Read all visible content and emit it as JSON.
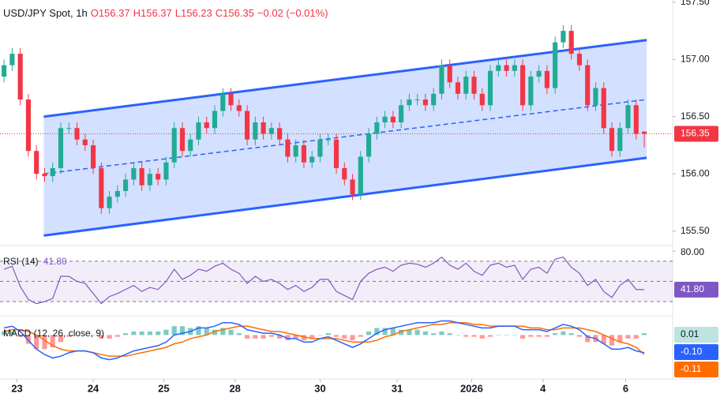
{
  "chart_data": {
    "type": "candlestick",
    "title": "USD/JPY Spot, 1h",
    "ohlc_labels": [
      "O156.37",
      "H156.37",
      "L156.23",
      "C156.35",
      "−0.02 (−0.01%)"
    ],
    "open": [
      156.85,
      156.95,
      157.05,
      156.65,
      156.2,
      156.0,
      155.98,
      156.05,
      156.4,
      156.4,
      156.3,
      156.25,
      156.05,
      155.7,
      155.8,
      155.85,
      155.95,
      156.05,
      155.9,
      156.0,
      155.95,
      156.1,
      156.4,
      156.2,
      156.3,
      156.45,
      156.4,
      156.55,
      156.7,
      156.6,
      156.55,
      156.3,
      156.45,
      156.35,
      156.4,
      156.3,
      156.15,
      156.25,
      156.1,
      156.15,
      156.3,
      156.3,
      156.05,
      155.95,
      155.82,
      156.15,
      156.35,
      156.45,
      156.5,
      156.45,
      156.6,
      156.65,
      156.65,
      156.6,
      156.7,
      156.95,
      156.8,
      156.7,
      156.85,
      156.7,
      156.6,
      156.9,
      156.95,
      156.9,
      156.95,
      156.6,
      156.85,
      156.9,
      156.75,
      157.15,
      157.25,
      157.05,
      156.95,
      156.6,
      156.75,
      156.4,
      156.2,
      156.4,
      156.6,
      156.37
    ],
    "high": [
      157.0,
      157.1,
      157.1,
      156.7,
      156.25,
      156.05,
      156.1,
      156.45,
      156.45,
      156.45,
      156.35,
      156.3,
      156.1,
      155.85,
      155.9,
      156.0,
      156.1,
      156.1,
      156.05,
      156.05,
      156.15,
      156.45,
      156.45,
      156.35,
      156.5,
      156.5,
      156.6,
      156.75,
      156.75,
      156.65,
      156.6,
      156.5,
      156.5,
      156.45,
      156.45,
      156.35,
      156.3,
      156.3,
      156.2,
      156.35,
      156.35,
      156.35,
      156.1,
      156.0,
      156.2,
      156.4,
      156.5,
      156.55,
      156.55,
      156.65,
      156.7,
      156.7,
      156.7,
      156.75,
      157.0,
      157.0,
      156.85,
      156.9,
      156.9,
      156.75,
      156.95,
      157.0,
      157.0,
      157.0,
      157.0,
      156.9,
      156.95,
      156.95,
      157.2,
      157.3,
      157.3,
      157.1,
      157.0,
      156.8,
      156.8,
      156.45,
      156.45,
      156.65,
      156.65,
      156.37
    ],
    "low": [
      156.8,
      156.9,
      156.6,
      156.15,
      155.95,
      155.93,
      155.93,
      156.0,
      156.35,
      156.25,
      156.2,
      156.0,
      155.65,
      155.65,
      155.75,
      155.8,
      155.9,
      155.85,
      155.85,
      155.9,
      155.9,
      156.05,
      156.15,
      156.15,
      156.25,
      156.35,
      156.35,
      156.5,
      156.55,
      156.5,
      156.25,
      156.25,
      156.3,
      156.3,
      156.25,
      156.1,
      156.1,
      156.05,
      156.05,
      156.1,
      156.25,
      156.0,
      155.9,
      155.77,
      155.77,
      156.1,
      156.3,
      156.4,
      156.4,
      156.4,
      156.55,
      156.6,
      156.55,
      156.55,
      156.65,
      156.75,
      156.65,
      156.65,
      156.65,
      156.55,
      156.55,
      156.85,
      156.85,
      156.85,
      156.55,
      156.55,
      156.8,
      156.7,
      156.7,
      157.1,
      157.0,
      156.9,
      156.55,
      156.55,
      156.35,
      156.15,
      156.15,
      156.35,
      156.3,
      156.23
    ],
    "close": [
      156.95,
      157.05,
      156.65,
      156.2,
      156.0,
      155.98,
      156.05,
      156.4,
      156.4,
      156.3,
      156.25,
      156.05,
      155.7,
      155.8,
      155.85,
      155.95,
      156.05,
      155.9,
      156.0,
      155.95,
      156.1,
      156.4,
      156.2,
      156.3,
      156.45,
      156.4,
      156.55,
      156.7,
      156.6,
      156.55,
      156.3,
      156.45,
      156.35,
      156.4,
      156.3,
      156.15,
      156.25,
      156.1,
      156.15,
      156.3,
      156.3,
      156.05,
      155.95,
      155.82,
      156.15,
      156.35,
      156.45,
      156.5,
      156.45,
      156.6,
      156.65,
      156.65,
      156.6,
      156.7,
      156.95,
      156.8,
      156.7,
      156.85,
      156.7,
      156.6,
      156.9,
      156.95,
      156.9,
      156.95,
      156.6,
      156.85,
      156.9,
      156.75,
      157.15,
      157.25,
      157.05,
      156.95,
      156.6,
      156.75,
      156.4,
      156.2,
      156.4,
      156.6,
      156.35,
      156.35
    ],
    "up_color": "#22ab94",
    "down_color": "#f23645",
    "xlim": [
      -0.5,
      82.5
    ],
    "xticks": [
      {
        "value": 1.6,
        "label": "23"
      },
      {
        "value": 11,
        "label": "24"
      },
      {
        "value": 19.7,
        "label": "25"
      },
      {
        "value": 28.5,
        "label": "28"
      },
      {
        "value": 39,
        "label": "30"
      },
      {
        "value": 48.5,
        "label": "31"
      },
      {
        "value": 57.7,
        "label": "2026"
      },
      {
        "value": 66.5,
        "label": "4"
      },
      {
        "value": 76.7,
        "label": "6"
      }
    ],
    "ylim": [
      155.38,
      157.52
    ],
    "yticks": [
      {
        "value": 155.5,
        "label": "155.50"
      },
      {
        "value": 156,
        "label": "156.00"
      },
      {
        "value": 156.5,
        "label": "156.50"
      },
      {
        "value": 157,
        "label": "157.00"
      },
      {
        "value": 157.5,
        "label": "157.50"
      }
    ],
    "grid": false,
    "last_price": {
      "value": 156.35,
      "label": "156.35",
      "color": "#f23645"
    },
    "channel": {
      "color": "#2962ff",
      "upper": [
        [
          4.9,
          156.5
        ],
        [
          79.3,
          157.17
        ]
      ],
      "middle": [
        [
          4.9,
          156.0
        ],
        [
          79.3,
          156.65
        ]
      ],
      "lower": [
        [
          4.9,
          155.46
        ],
        [
          79.3,
          156.14
        ]
      ]
    },
    "rsi": {
      "title": "RSI (14)",
      "value_label": "41.80",
      "color": "#7e57c2",
      "values": [
        62,
        65,
        45,
        32,
        28,
        30,
        33,
        55,
        55,
        50,
        48,
        38,
        28,
        35,
        38,
        42,
        46,
        40,
        44,
        42,
        50,
        62,
        52,
        56,
        62,
        60,
        65,
        68,
        62,
        58,
        48,
        55,
        50,
        52,
        48,
        42,
        46,
        40,
        44,
        52,
        52,
        40,
        36,
        32,
        50,
        58,
        62,
        64,
        60,
        66,
        68,
        67,
        64,
        68,
        74,
        66,
        62,
        68,
        60,
        56,
        66,
        68,
        64,
        66,
        52,
        62,
        64,
        58,
        72,
        74,
        64,
        58,
        46,
        52,
        40,
        34,
        46,
        52,
        42,
        41.8
      ],
      "ylim": [
        17.5,
        84.7
      ],
      "yticks": [
        {
          "value": 80,
          "label": "80.00"
        }
      ],
      "levels": [
        30,
        50,
        70
      ]
    },
    "macd": {
      "title": "MACD (12, 26, close, 9)",
      "ylim": [
        -0.24,
        0.1
      ],
      "macd": {
        "color": "#2962ff",
        "last_label": "-0.10",
        "values": [
          0.04,
          0.05,
          0.02,
          -0.03,
          -0.08,
          -0.11,
          -0.13,
          -0.12,
          -0.1,
          -0.09,
          -0.09,
          -0.1,
          -0.13,
          -0.14,
          -0.13,
          -0.11,
          -0.09,
          -0.08,
          -0.07,
          -0.06,
          -0.04,
          0.0,
          0.01,
          0.02,
          0.04,
          0.04,
          0.05,
          0.07,
          0.07,
          0.06,
          0.03,
          0.02,
          0.01,
          0.01,
          0.0,
          -0.02,
          -0.02,
          -0.04,
          -0.04,
          -0.02,
          -0.01,
          -0.03,
          -0.05,
          -0.07,
          -0.05,
          -0.02,
          0.01,
          0.03,
          0.04,
          0.05,
          0.06,
          0.07,
          0.07,
          0.07,
          0.08,
          0.08,
          0.07,
          0.06,
          0.05,
          0.04,
          0.04,
          0.05,
          0.05,
          0.05,
          0.03,
          0.03,
          0.03,
          0.02,
          0.04,
          0.06,
          0.05,
          0.03,
          -0.01,
          -0.02,
          -0.05,
          -0.08,
          -0.08,
          -0.07,
          -0.09,
          -0.1
        ]
      },
      "signal": {
        "color": "#ff6d00",
        "last_label": "-0.11",
        "values": [
          0.02,
          0.03,
          0.03,
          0.02,
          0.0,
          -0.03,
          -0.06,
          -0.08,
          -0.09,
          -0.09,
          -0.09,
          -0.1,
          -0.11,
          -0.12,
          -0.12,
          -0.12,
          -0.11,
          -0.1,
          -0.09,
          -0.08,
          -0.07,
          -0.05,
          -0.04,
          -0.02,
          -0.01,
          0.0,
          0.02,
          0.03,
          0.04,
          0.05,
          0.05,
          0.04,
          0.03,
          0.02,
          0.02,
          0.01,
          0.0,
          -0.01,
          -0.02,
          -0.02,
          -0.02,
          -0.02,
          -0.03,
          -0.04,
          -0.04,
          -0.04,
          -0.03,
          -0.01,
          0.0,
          0.02,
          0.03,
          0.04,
          0.05,
          0.06,
          0.06,
          0.07,
          0.07,
          0.07,
          0.06,
          0.06,
          0.05,
          0.05,
          0.05,
          0.05,
          0.05,
          0.04,
          0.04,
          0.03,
          0.03,
          0.04,
          0.04,
          0.04,
          0.03,
          0.02,
          0.0,
          -0.02,
          -0.04,
          -0.05,
          -0.07,
          -0.11
        ]
      },
      "histogram": {
        "up_color": "#26a69a",
        "down_color": "#ff5252",
        "last_label": "0.01",
        "values": [
          0.02,
          0.02,
          -0.01,
          -0.05,
          -0.08,
          -0.08,
          -0.07,
          -0.04,
          -0.01,
          0.0,
          0.0,
          0.0,
          -0.02,
          -0.02,
          -0.01,
          0.01,
          0.02,
          0.02,
          0.02,
          0.02,
          0.03,
          0.05,
          0.05,
          0.04,
          0.05,
          0.04,
          0.03,
          0.04,
          0.03,
          0.01,
          -0.02,
          -0.02,
          -0.02,
          -0.01,
          -0.02,
          -0.03,
          -0.02,
          -0.03,
          -0.02,
          0.0,
          0.01,
          -0.01,
          -0.02,
          -0.03,
          -0.01,
          0.02,
          0.04,
          0.04,
          0.04,
          0.03,
          0.03,
          0.03,
          0.02,
          0.01,
          0.02,
          0.01,
          0.0,
          -0.01,
          -0.01,
          -0.02,
          -0.01,
          0.0,
          0.0,
          0.0,
          -0.02,
          -0.01,
          -0.01,
          -0.01,
          0.01,
          0.02,
          0.01,
          -0.01,
          -0.04,
          -0.04,
          -0.05,
          -0.06,
          -0.04,
          -0.02,
          -0.02,
          0.01
        ]
      }
    }
  }
}
